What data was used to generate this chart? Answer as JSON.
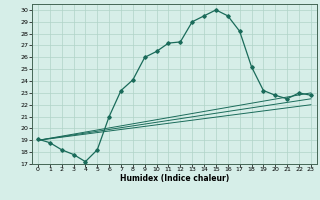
{
  "title": "",
  "xlabel": "Humidex (Indice chaleur)",
  "xlim": [
    -0.5,
    23.5
  ],
  "ylim": [
    17,
    30.5
  ],
  "yticks": [
    17,
    18,
    19,
    20,
    21,
    22,
    23,
    24,
    25,
    26,
    27,
    28,
    29,
    30
  ],
  "xticks": [
    0,
    1,
    2,
    3,
    4,
    5,
    6,
    7,
    8,
    9,
    10,
    11,
    12,
    13,
    14,
    15,
    16,
    17,
    18,
    19,
    20,
    21,
    22,
    23
  ],
  "bg_color": "#d6eee8",
  "grid_color": "#b0d4c8",
  "line_color": "#1a6b5a",
  "curve1_x": [
    0,
    1,
    2,
    3,
    4,
    5,
    6,
    7,
    8,
    9,
    10,
    11,
    12,
    13,
    14,
    15,
    16,
    17,
    18,
    19,
    20,
    21,
    22,
    23
  ],
  "curve1_y": [
    19.1,
    18.8,
    18.2,
    17.8,
    17.2,
    18.2,
    21.0,
    23.2,
    24.1,
    26.0,
    26.5,
    27.2,
    27.3,
    29.0,
    29.5,
    30.0,
    29.5,
    28.2,
    25.2,
    23.2,
    22.8,
    22.5,
    23.0,
    22.8
  ],
  "line2_x": [
    0,
    23
  ],
  "line2_y": [
    19.0,
    23.0
  ],
  "line3_x": [
    0,
    23
  ],
  "line3_y": [
    19.0,
    22.5
  ],
  "line4_x": [
    0,
    23
  ],
  "line4_y": [
    19.0,
    22.0
  ]
}
